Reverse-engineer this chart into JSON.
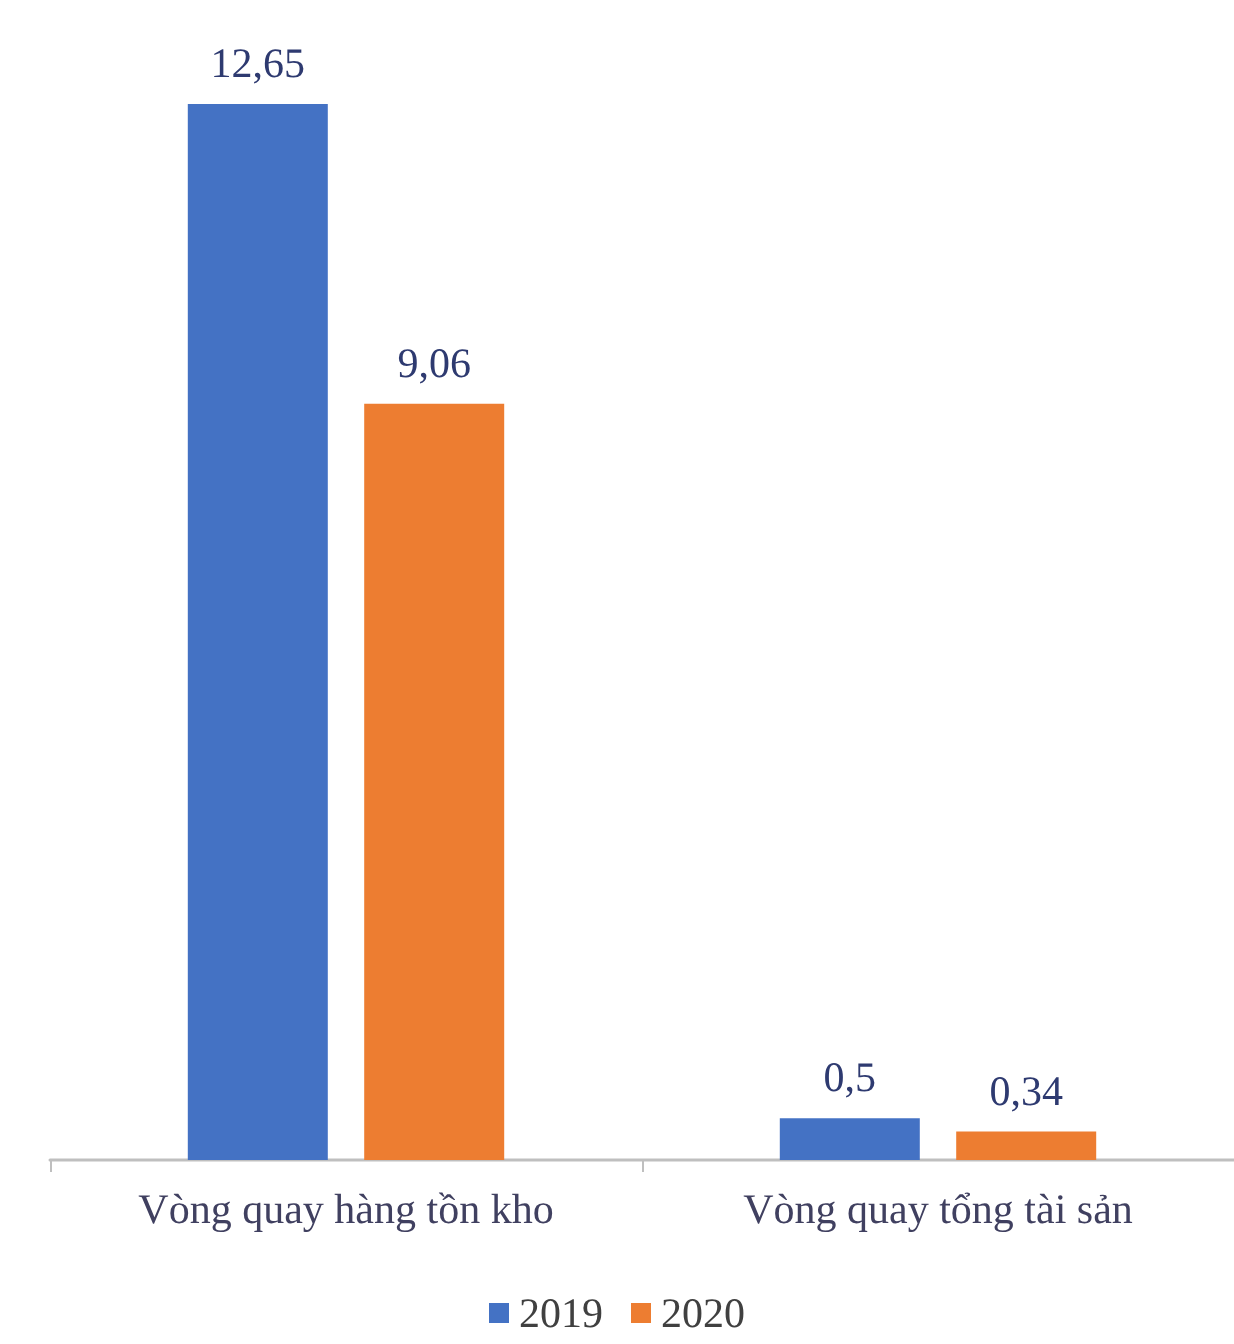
{
  "chart_data": {
    "type": "bar",
    "categories": [
      "Vòng quay hàng tồn kho",
      "Vòng quay tổng tài sản"
    ],
    "series": [
      {
        "name": "2019",
        "color": "#4472c4",
        "values": [
          12.65,
          0.5
        ],
        "value_labels": [
          "12,65",
          "0,5"
        ]
      },
      {
        "name": "2020",
        "color": "#ed7d31",
        "values": [
          9.06,
          0.34
        ],
        "value_labels": [
          "9,06",
          "0,34"
        ]
      }
    ],
    "legend": "bottom"
  }
}
